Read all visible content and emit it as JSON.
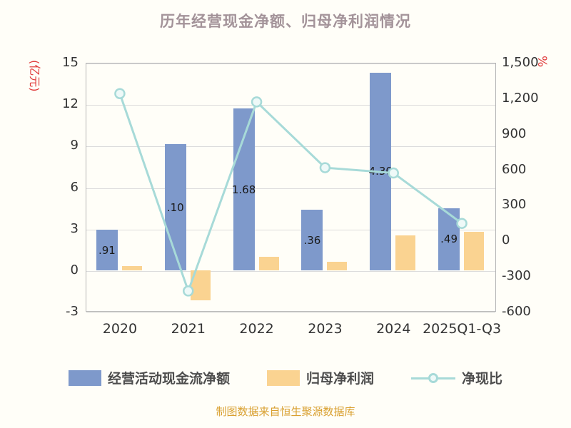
{
  "title": "历年经营现金净额、归母净利润情况",
  "footer": "制图数据来自恒生聚源数据库",
  "left_axis": {
    "label": "(亿元)",
    "ticks": [
      15,
      12,
      9,
      6,
      3,
      0,
      -3
    ],
    "min": -3,
    "max": 15
  },
  "right_axis": {
    "label": "%",
    "ticks": [
      "1,500",
      "1,200",
      "900",
      "600",
      "300",
      "0",
      "-300",
      "-600"
    ],
    "min": -600,
    "max": 1500
  },
  "legend": [
    {
      "type": "bar",
      "label": "经营活动现金流净额",
      "color": "#7e99cb"
    },
    {
      "type": "bar",
      "label": "归母净利润",
      "color": "#fad391"
    },
    {
      "type": "line",
      "label": "净现比",
      "color": "#a7dad8"
    }
  ],
  "colors": {
    "bar_blue": "#7e99cb",
    "bar_tan": "#fad391",
    "line_teal": "#a7dad8",
    "marker_fill": "#eef9f8",
    "axis_red": "#e03a3a",
    "title_gray": "#a39399",
    "footer_orange": "#d9a030"
  },
  "chart_data": {
    "type": "bar",
    "subtype": "bar+line combo, dual axis",
    "title": "历年经营现金净额、归母净利润情况",
    "categories": [
      "2020",
      "2021",
      "2022",
      "2023",
      "2024",
      "2025Q1-Q3"
    ],
    "series": [
      {
        "name": "经营活动现金流净额",
        "type": "bar",
        "axis": "left",
        "color": "#7e99cb",
        "values": [
          2.91,
          9.1,
          11.68,
          4.36,
          14.3,
          4.49
        ],
        "visible_labels": [
          ".91",
          ".10",
          "1.68",
          ".36",
          "4.30",
          ".49"
        ]
      },
      {
        "name": "归母净利润",
        "type": "bar",
        "axis": "left",
        "color": "#fad391",
        "values": [
          0.3,
          -2.2,
          0.95,
          0.6,
          2.5,
          2.8
        ]
      },
      {
        "name": "净现比",
        "type": "line",
        "axis": "right",
        "color": "#a7dad8",
        "values": [
          1240,
          -425,
          1170,
          615,
          570,
          145
        ]
      }
    ],
    "ylabel_left": "(亿元)",
    "ylabel_right": "%",
    "ylim_left": [
      -3,
      15
    ],
    "ylim_right": [
      -600,
      1500
    ],
    "grid": true,
    "legend_position": "bottom"
  }
}
